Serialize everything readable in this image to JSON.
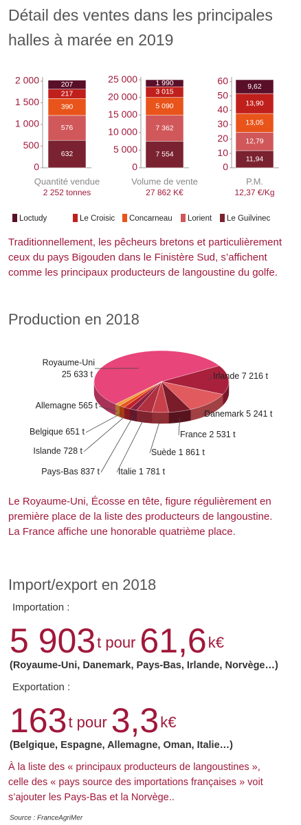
{
  "title": [
    "Détail des ventes dans les principales",
    "halles à marée en 2019"
  ],
  "chart_data": [
    {
      "type": "stacked-bar",
      "x_label": "Quantité vendue",
      "total_label": "2 252  tonnes",
      "series": [
        {
          "name": "Loctudy",
          "color": "#5a0f28",
          "values": [
            207
          ],
          "value_labels": [
            "207"
          ]
        },
        {
          "name": "Le Croisic",
          "color": "#c0201c",
          "values": [
            217
          ],
          "value_labels": [
            "217"
          ]
        },
        {
          "name": "Concarneau",
          "color": "#e8541a",
          "values": [
            390
          ],
          "value_labels": [
            "390"
          ]
        },
        {
          "name": "Lorient",
          "color": "#d0585a",
          "values": [
            576
          ],
          "value_labels": [
            "576"
          ]
        },
        {
          "name": "Le Guilvinec",
          "color": "#7a2230",
          "values": [
            632
          ],
          "value_labels": [
            "632"
          ]
        }
      ],
      "ylim": [
        0,
        2032
      ],
      "yticks": [
        0,
        500,
        {
          "value": 1000,
          "label": "1 000"
        },
        {
          "value": 1500,
          "label": "1 500"
        },
        {
          "value": 2000,
          "label": "2 000"
        }
      ]
    },
    {
      "type": "stacked-bar",
      "x_label": "Volume de vente",
      "total_label": "27 862  K€",
      "series": [
        {
          "name": "Loctudy",
          "color": "#5a0f28",
          "values": [
            1990
          ],
          "value_labels": [
            "1 990"
          ]
        },
        {
          "name": "Le Croisic",
          "color": "#c0201c",
          "values": [
            3015
          ],
          "value_labels": [
            "3 015"
          ]
        },
        {
          "name": "Concarneau",
          "color": "#e8541a",
          "values": [
            5090
          ],
          "value_labels": [
            "5 090"
          ]
        },
        {
          "name": "Lorient",
          "color": "#d0585a",
          "values": [
            7362
          ],
          "value_labels": [
            "7 362"
          ]
        },
        {
          "name": "Le Guilvinec",
          "color": "#7a2230",
          "values": [
            7554
          ],
          "value_labels": [
            "7 554"
          ]
        }
      ],
      "ylim": [
        0,
        25011
      ],
      "yticks": [
        0,
        {
          "value": 5000,
          "label": "5 000"
        },
        {
          "value": 10000,
          "label": "10 000"
        },
        {
          "value": 15000,
          "label": "15 000"
        },
        {
          "value": 20000,
          "label": "20 000"
        },
        {
          "value": 25000,
          "label": "25 000"
        }
      ]
    },
    {
      "type": "stacked-bar",
      "x_label": "P.M.",
      "total_label": "12,37  €/Kg",
      "series": [
        {
          "name": "Loctudy",
          "color": "#5a0f28",
          "values": [
            9.62
          ],
          "value_labels": [
            "9,62"
          ]
        },
        {
          "name": "Le Croisic",
          "color": "#c0201c",
          "values": [
            13.9
          ],
          "value_labels": [
            "13,90"
          ]
        },
        {
          "name": "Concarneau",
          "color": "#e8541a",
          "values": [
            13.05
          ],
          "value_labels": [
            "13,05"
          ]
        },
        {
          "name": "Lorient",
          "color": "#d0585a",
          "values": [
            12.79
          ],
          "value_labels": [
            "12,79"
          ]
        },
        {
          "name": "Le Guilvinec",
          "color": "#7a2230",
          "values": [
            11.94
          ],
          "value_labels": [
            "11,94"
          ]
        }
      ],
      "ylim": [
        0,
        61.3
      ],
      "yticks": [
        0,
        10,
        20,
        30,
        40,
        50,
        60
      ]
    },
    {
      "type": "pie",
      "title": "Production en 2018",
      "categories": [
        "Royaume-Uni",
        "Irlande",
        "Danemark",
        "France",
        "Suède",
        "Italie",
        "Pays-Bas",
        "Islande",
        "Belgique",
        "Allemagne"
      ],
      "values": [
        25633,
        7216,
        5241,
        2531,
        1861,
        1781,
        837,
        728,
        651,
        565
      ],
      "value_labels": [
        "25 633 t",
        "7 216 t",
        "5 241 t",
        "2 531 t",
        "1 861 t",
        "1 781 t",
        "837 t",
        "728 t",
        "651 t",
        "565 t"
      ],
      "colors": [
        "#e8457a",
        "#a8203c",
        "#e05a5e",
        "#7a1c2a",
        "#c8414a",
        "#b03040",
        "#8a2040",
        "#c0202a",
        "#e8541a",
        "#f0a040"
      ]
    }
  ],
  "paragraph1": [
    "Traditionnellement, les pêcheurs bretons et particulièrement",
    "ceux du pays Bigouden dans le Finistère Sud, s’affichent",
    "comme les principaux producteurs de langoustine du golfe."
  ],
  "paragraph2": [
    "Le Royaume-Uni, Écosse en tête, figure régulièrement en",
    "première place de la liste des producteurs de langoustine.",
    "La France affiche une honorable quatrième place."
  ],
  "section3_title": "Import/export en 2018",
  "import": {
    "label": "Importation :",
    "quantity": "5 903",
    "unit": "t pour",
    "amount": "61,6",
    "currency": "k€",
    "countries": "(Royaume-Uni, Danemark, Pays-Bas, Irlande, Norvège…)"
  },
  "export": {
    "label": "Exportation :",
    "quantity": "163",
    "unit": "t pour",
    "amount": "3,3",
    "currency": "k€",
    "countries": "(Belgique, Espagne, Allemagne, Oman, Italie…)"
  },
  "paragraph3": [
    "À la liste des « principaux producteurs de langoustines »,",
    "celle des « pays source des importations françaises » voit",
    "s’ajouter les Pays-Bas et la Norvège.."
  ],
  "source": "Source :  FranceAgriMer"
}
